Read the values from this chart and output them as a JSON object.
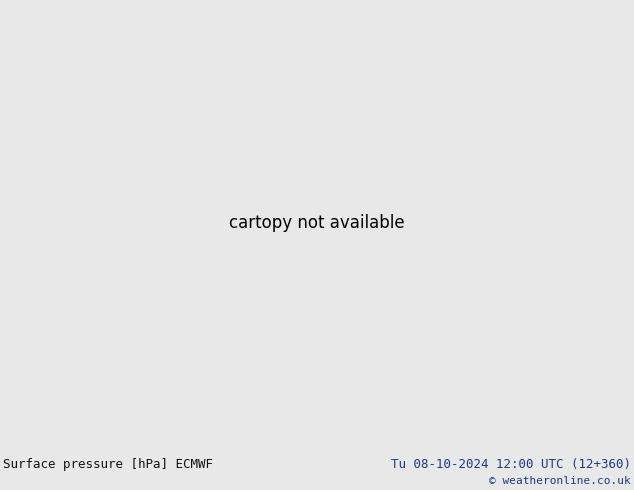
{
  "title_left": "Surface pressure [hPa] ECMWF",
  "title_right": "Tu 08-10-2024 12:00 UTC (12+360)",
  "copyright": "© weatheronline.co.uk",
  "land_color": "#c8e6a0",
  "ocean_color": "#d8eef8",
  "mountain_color": "#b0c890",
  "border_color": "#888888",
  "text_color_left": "#111111",
  "text_color_right": "#1a3a8a",
  "font_size_bottom": 9,
  "fig_width": 6.34,
  "fig_height": 4.9,
  "bg_color": "#e8e8e8",
  "bottom_bg": "#d8d8d8",
  "blue_isobar": "#0055cc",
  "red_isobar": "#cc0000",
  "black_isobar": "#000000"
}
